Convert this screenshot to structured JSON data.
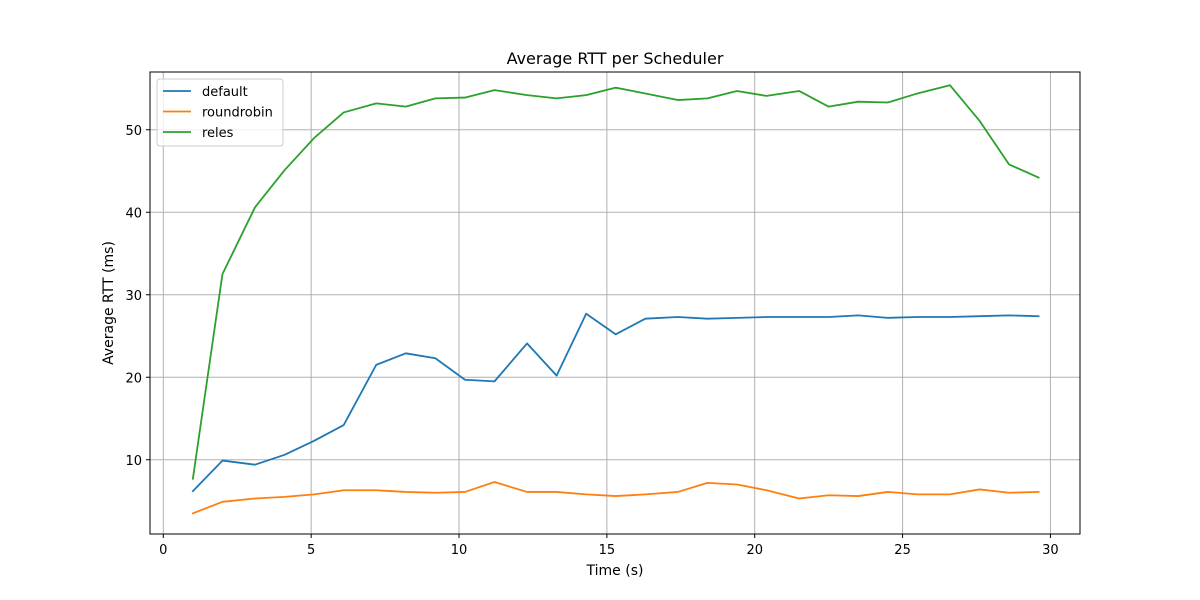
{
  "chart_data": {
    "type": "line",
    "title": "Average RTT per Scheduler",
    "xlabel": "Time (s)",
    "ylabel": "Average RTT (ms)",
    "xlim": [
      -0.45,
      31.0
    ],
    "ylim": [
      1.0,
      57.0
    ],
    "xticks": [
      0,
      5,
      10,
      15,
      20,
      25,
      30
    ],
    "yticks": [
      10,
      20,
      30,
      40,
      50
    ],
    "grid": true,
    "legend_position": "top-left",
    "x": [
      1.0,
      2.0,
      3.1,
      4.1,
      5.1,
      6.1,
      7.2,
      8.2,
      9.2,
      10.2,
      11.2,
      12.3,
      13.3,
      14.3,
      15.3,
      16.3,
      17.4,
      18.4,
      19.4,
      20.4,
      21.5,
      22.5,
      23.5,
      24.5,
      25.5,
      26.6,
      27.6,
      28.6,
      29.6
    ],
    "series": [
      {
        "name": "default",
        "color": "#1f77b4",
        "values": [
          6.2,
          9.9,
          9.4,
          10.6,
          12.3,
          14.2,
          21.5,
          22.9,
          22.3,
          19.7,
          19.5,
          24.1,
          20.2,
          27.7,
          25.2,
          27.1,
          27.3,
          27.1,
          27.2,
          27.3,
          27.3,
          27.3,
          27.5,
          27.2,
          27.3,
          27.3,
          27.4,
          27.5,
          27.4
        ]
      },
      {
        "name": "roundrobin",
        "color": "#ff7f0e",
        "values": [
          3.5,
          4.9,
          5.3,
          5.5,
          5.8,
          6.3,
          6.3,
          6.1,
          6.0,
          6.1,
          7.3,
          6.1,
          6.1,
          5.8,
          5.6,
          5.8,
          6.1,
          7.2,
          7.0,
          6.3,
          5.3,
          5.7,
          5.6,
          6.1,
          5.8,
          5.8,
          6.4,
          6.0,
          6.1
        ]
      },
      {
        "name": "reles",
        "color": "#2ca02c",
        "values": [
          7.7,
          32.5,
          40.6,
          45.1,
          49.0,
          52.1,
          53.2,
          52.8,
          53.8,
          53.9,
          54.8,
          54.2,
          53.8,
          54.2,
          55.1,
          54.4,
          53.6,
          53.8,
          54.7,
          54.1,
          54.7,
          52.8,
          53.4,
          53.3,
          54.4,
          55.4,
          51.1,
          45.8,
          44.2
        ]
      }
    ]
  }
}
